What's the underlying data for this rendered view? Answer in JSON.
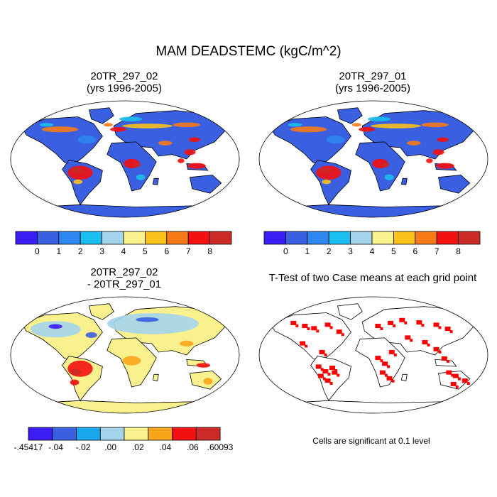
{
  "title": "MAM DEADSTEMC (kgC/m^2)",
  "panels": [
    {
      "id": "case1",
      "title_line1": "20TR_297_02",
      "title_line2": "(yrs 1996-2005)"
    },
    {
      "id": "case2",
      "title_line1": "20TR_297_01",
      "title_line2": "(yrs 1996-2005)"
    },
    {
      "id": "diff",
      "title_line1": "20TR_297_02",
      "title_line2": "- 20TR_297_01"
    },
    {
      "id": "ttest",
      "title_line1": "T-Test of two Case means at each grid point",
      "title_line2": ""
    }
  ],
  "colorbars": {
    "abs": {
      "colors": [
        "#3b1cf5",
        "#3a5fe0",
        "#2e86f0",
        "#19bff0",
        "#a3d4ec",
        "#f9f18e",
        "#f9c11a",
        "#f77a18",
        "#f41010",
        "#cb2a26"
      ],
      "labels": [
        "0",
        "1",
        "2",
        "3",
        "4",
        "5",
        "6",
        "7",
        "8"
      ]
    },
    "diff": {
      "colors": [
        "#3b1cf5",
        "#3a5fe0",
        "#19a8ee",
        "#a3d4ec",
        "#f9f18e",
        "#f9a51a",
        "#f41010",
        "#cb2a26"
      ],
      "labels": [
        "-.45417",
        "-.04",
        "-.02",
        ".00",
        ".02",
        ".04",
        ".06",
        ".60093"
      ]
    }
  },
  "map_colors": {
    "ocean": "#ffffff",
    "land_abs": "#3a5fe0",
    "land_diff": "#f9f18e",
    "sig": "#ff0000",
    "coast": "#000000"
  },
  "footnote": "Cells are significant at 0.1 level"
}
